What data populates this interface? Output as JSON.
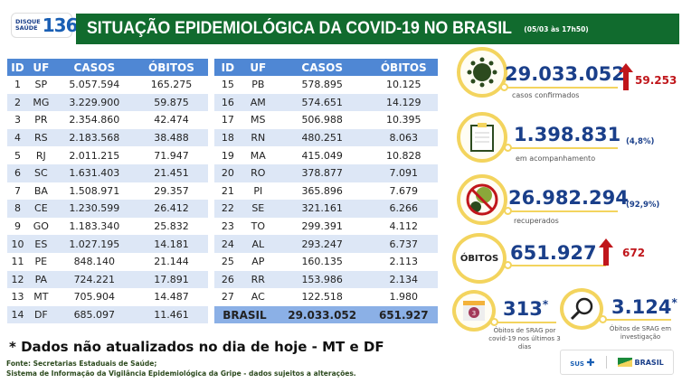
{
  "header": {
    "logo_line1": "DISQUE",
    "logo_line2": "SAÚDE",
    "logo_number": "136",
    "title": "SITUAÇÃO EPIDEMIOLÓGICA DA COVID-19 NO BRASIL",
    "datetime": "(05/03 às 17h50)"
  },
  "table": {
    "columns": [
      "ID",
      "UF",
      "CASOS",
      "ÓBITOS"
    ],
    "left": [
      [
        "1",
        "SP",
        "5.057.594",
        "165.275"
      ],
      [
        "2",
        "MG",
        "3.229.900",
        "59.875"
      ],
      [
        "3",
        "PR",
        "2.354.860",
        "42.474"
      ],
      [
        "4",
        "RS",
        "2.183.568",
        "38.488"
      ],
      [
        "5",
        "RJ",
        "2.011.215",
        "71.947"
      ],
      [
        "6",
        "SC",
        "1.631.403",
        "21.451"
      ],
      [
        "7",
        "BA",
        "1.508.971",
        "29.357"
      ],
      [
        "8",
        "CE",
        "1.230.599",
        "26.412"
      ],
      [
        "9",
        "GO",
        "1.183.340",
        "25.832"
      ],
      [
        "10",
        "ES",
        "1.027.195",
        "14.181"
      ],
      [
        "11",
        "PE",
        "848.140",
        "21.144"
      ],
      [
        "12",
        "PA",
        "724.221",
        "17.891"
      ],
      [
        "13",
        "MT",
        "705.904",
        "14.487"
      ],
      [
        "14",
        "DF",
        "685.097",
        "11.461"
      ]
    ],
    "right": [
      [
        "15",
        "PB",
        "578.895",
        "10.125"
      ],
      [
        "16",
        "AM",
        "574.651",
        "14.129"
      ],
      [
        "17",
        "MS",
        "506.988",
        "10.395"
      ],
      [
        "18",
        "RN",
        "480.251",
        "8.063"
      ],
      [
        "19",
        "MA",
        "415.049",
        "10.828"
      ],
      [
        "20",
        "RO",
        "378.877",
        "7.091"
      ],
      [
        "21",
        "PI",
        "365.896",
        "7.679"
      ],
      [
        "22",
        "SE",
        "321.161",
        "6.266"
      ],
      [
        "23",
        "TO",
        "299.391",
        "4.112"
      ],
      [
        "24",
        "AL",
        "293.247",
        "6.737"
      ],
      [
        "25",
        "AP",
        "160.135",
        "2.113"
      ],
      [
        "26",
        "RR",
        "153.986",
        "2.134"
      ],
      [
        "27",
        "AC",
        "122.518",
        "1.980"
      ]
    ],
    "total": {
      "label": "BRASIL",
      "casos": "29.033.052",
      "obitos": "651.927"
    }
  },
  "stats": {
    "confirmed": {
      "value": "29.033.052",
      "label": "casos confirmados",
      "increase": "59.253",
      "icon": "virus-icon"
    },
    "monitoring": {
      "value": "1.398.831",
      "pct": "(4,8%)",
      "label": "em acompanhamento",
      "icon": "clipboard-icon"
    },
    "recovered": {
      "value": "26.982.294",
      "pct": "(92,9%)",
      "label": "recuperados",
      "icon": "no-virus-icon"
    },
    "deaths": {
      "badge": "ÓBITOS",
      "value": "651.927",
      "increase": "672"
    },
    "srag_recent": {
      "value": "313",
      "asterisk": "*",
      "label": "Óbitos de SRAG por covid-19 nos últimos 3 dias",
      "calendar_day": "3",
      "icon": "calendar-icon"
    },
    "srag_investigation": {
      "value": "3.124",
      "asterisk": "*",
      "label": "Óbitos de SRAG em investigação",
      "icon": "magnifier-icon"
    }
  },
  "footer": {
    "note": "* Dados não atualizados no dia de hoje - MT e DF",
    "source1": "Fonte: Secretarias Estaduais de Saúde;",
    "source2": "Sistema de Informação da Vigilância Epidemiológica da Gripe - dados sujeitos a alterações.",
    "logo_sus": "SUS",
    "logo_brasil": "BRASIL"
  },
  "colors": {
    "green": "#116b2e",
    "blue": "#1a3f8a",
    "header_blue": "#4f87d4",
    "red": "#c0161b",
    "yellow": "#f3d45e"
  }
}
